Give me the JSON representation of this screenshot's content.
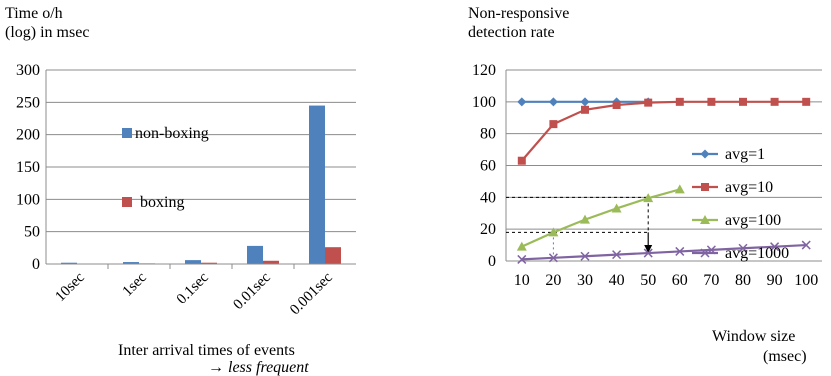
{
  "chart_data": [
    {
      "type": "bar",
      "ylabel_line1": "Time o/h",
      "ylabel_line2": "(log) in msec",
      "xlabel": "Inter arrival times of events",
      "xlabel_note": "→ less frequent",
      "categories": [
        "10sec",
        "1sec",
        "0.1sec",
        "0.01sec",
        "0.001sec"
      ],
      "ylim": [
        0,
        300
      ],
      "yticks": [
        0,
        50,
        100,
        150,
        200,
        250,
        300
      ],
      "grid": true,
      "legend_position": "inside-center",
      "series": [
        {
          "name": "non-boxing",
          "color": "#4f81bd",
          "values": [
            2,
            3,
            6,
            28,
            245
          ]
        },
        {
          "name": "boxing",
          "color": "#c0504d",
          "values": [
            0.5,
            1,
            2,
            5,
            26
          ]
        }
      ]
    },
    {
      "type": "line",
      "ylabel_line1": "Non-responsive",
      "ylabel_line2": "detection rate",
      "xlabel_line1": "Window size",
      "xlabel_line2": "(msec)",
      "x": [
        10,
        20,
        30,
        40,
        50,
        60,
        70,
        80,
        90,
        100
      ],
      "ylim": [
        0,
        120
      ],
      "yticks": [
        0,
        20,
        40,
        60,
        80,
        100,
        120
      ],
      "grid": true,
      "legend_position": "right",
      "series": [
        {
          "name": "avg=1",
          "color": "#4f81bd",
          "marker": "diamond",
          "x": [
            10,
            20,
            30,
            40,
            50
          ],
          "values": [
            100,
            100,
            100,
            100,
            100
          ]
        },
        {
          "name": "avg=10",
          "color": "#c0504d",
          "marker": "square",
          "x": [
            10,
            20,
            30,
            40,
            50,
            60,
            70,
            80,
            90,
            100
          ],
          "values": [
            63,
            86,
            95,
            98,
            99.5,
            100,
            100,
            100,
            100,
            100
          ]
        },
        {
          "name": "avg=100",
          "color": "#9bbb59",
          "marker": "triangle",
          "x": [
            10,
            20,
            30,
            40,
            50,
            60
          ],
          "values": [
            9,
            18,
            26,
            33,
            39.5,
            45
          ]
        },
        {
          "name": "avg=1000",
          "color": "#8064a2",
          "marker": "x",
          "x": [
            10,
            20,
            30,
            40,
            50,
            60,
            70,
            80,
            90,
            100
          ],
          "values": [
            1,
            2,
            3,
            4,
            5,
            6,
            7,
            8,
            9,
            10
          ]
        }
      ],
      "annotations": {
        "ref_high": {
          "x": 50,
          "y": 40
        },
        "ref_low": {
          "x": 20,
          "y": 18
        },
        "arrow": {
          "x": 50,
          "from_y": 18,
          "to_y": 5
        }
      }
    }
  ]
}
